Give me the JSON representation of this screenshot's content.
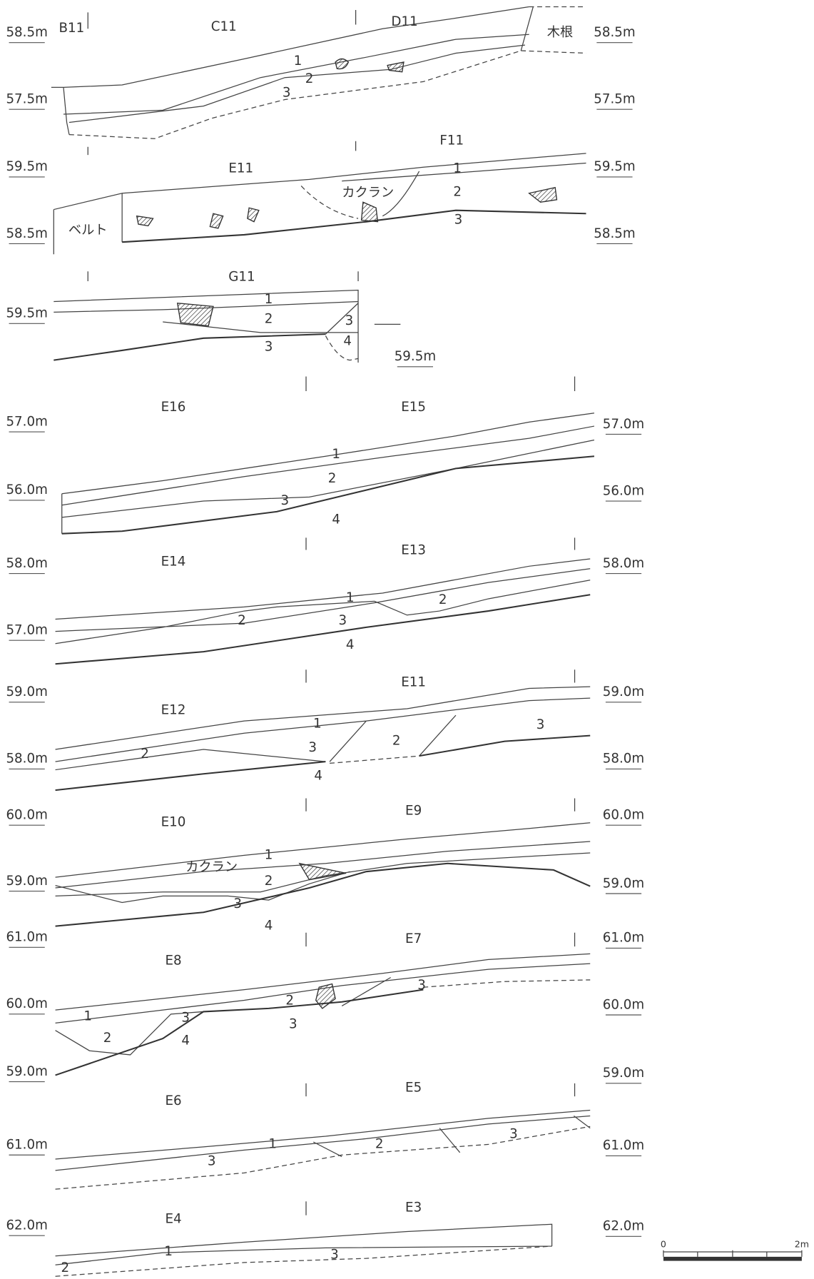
{
  "sections": [
    {
      "grids": [
        "B11",
        "C11",
        "D11"
      ],
      "elev_left": [
        "58.5m",
        "57.5m"
      ],
      "elev_right": [
        "58.5m",
        "57.5m"
      ],
      "layers": [
        "1",
        "2",
        "3"
      ],
      "notes": [
        "木根"
      ]
    },
    {
      "grids": [
        "F11",
        "E11"
      ],
      "elev_left": [
        "59.5m",
        "58.5m"
      ],
      "elev_right": [
        "59.5m",
        "58.5m"
      ],
      "layers": [
        "1",
        "2",
        "3"
      ],
      "notes": [
        "カクラン",
        "ベルト"
      ]
    },
    {
      "grids": [
        "G11"
      ],
      "elev_left": [
        "59.5m"
      ],
      "elev_right": [
        "59.5m"
      ],
      "layers": [
        "1",
        "2",
        "3",
        "3",
        "4"
      ]
    },
    {
      "grids": [
        "E16",
        "E15"
      ],
      "elev_left": [
        "57.0m",
        "56.0m"
      ],
      "elev_right": [
        "57.0m",
        "56.0m"
      ],
      "layers": [
        "1",
        "2",
        "3",
        "4"
      ]
    },
    {
      "grids": [
        "E14",
        "E13"
      ],
      "elev_left": [
        "58.0m",
        "57.0m"
      ],
      "elev_right": [
        "58.0m"
      ],
      "layers": [
        "1",
        "2",
        "2",
        "3",
        "4"
      ]
    },
    {
      "grids": [
        "E12",
        "E11"
      ],
      "elev_left": [
        "59.0m",
        "58.0m"
      ],
      "elev_right": [
        "59.0m",
        "58.0m"
      ],
      "layers": [
        "1",
        "2",
        "3",
        "2",
        "3",
        "4"
      ]
    },
    {
      "grids": [
        "E10",
        "E9"
      ],
      "elev_left": [
        "60.0m",
        "59.0m"
      ],
      "elev_right": [
        "60.0m",
        "59.0m"
      ],
      "layers": [
        "1",
        "2",
        "3",
        "4"
      ],
      "notes": [
        "カクラン"
      ]
    },
    {
      "grids": [
        "E8",
        "E7"
      ],
      "elev_left": [
        "61.0m",
        "60.0m",
        "59.0m"
      ],
      "elev_right": [
        "61.0m",
        "60.0m",
        "59.0m"
      ],
      "layers": [
        "1",
        "2",
        "3",
        "4",
        "2",
        "3",
        "3"
      ]
    },
    {
      "grids": [
        "E6",
        "E5"
      ],
      "elev_left": [
        "61.0m"
      ],
      "elev_right": [
        "61.0m"
      ],
      "layers": [
        "1",
        "2",
        "3",
        "3"
      ]
    },
    {
      "grids": [
        "E4",
        "E3"
      ],
      "elev_left": [
        "62.0m"
      ],
      "elev_right": [
        "62.0m"
      ],
      "layers": [
        "1",
        "2",
        "3"
      ]
    }
  ],
  "scale": {
    "labels": [
      "0",
      "2m"
    ]
  }
}
